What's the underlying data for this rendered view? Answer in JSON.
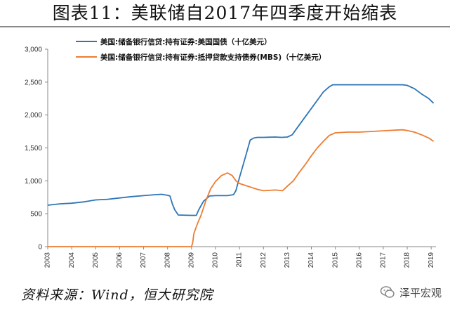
{
  "title": "图表11：美联储自2017年四季度开始缩表",
  "source": "资料来源：Wind，恒大研究院",
  "watermark": "泽平宏观",
  "chart_data": {
    "type": "line",
    "xlim": [
      2003,
      2019.2
    ],
    "ylim": [
      0,
      3000
    ],
    "xticks": [
      "2003",
      "2004",
      "2005",
      "2006",
      "2007",
      "2008",
      "2009",
      "2010",
      "2011",
      "2012",
      "2013",
      "2014",
      "2015",
      "2016",
      "2017",
      "2018",
      "2019"
    ],
    "yticks": [
      "0",
      "500",
      "1,000",
      "1,500",
      "2,000",
      "2,500",
      "3,000"
    ],
    "legend_position": "top",
    "grid": false,
    "series": [
      {
        "name": "美国:储备银行信贷:持有证券:美国国债（十亿美元）",
        "color": "#2E75B6",
        "points": [
          [
            2003.0,
            630
          ],
          [
            2003.5,
            650
          ],
          [
            2004.0,
            660
          ],
          [
            2004.5,
            680
          ],
          [
            2005.0,
            710
          ],
          [
            2005.5,
            720
          ],
          [
            2006.0,
            740
          ],
          [
            2006.5,
            760
          ],
          [
            2007.0,
            775
          ],
          [
            2007.5,
            790
          ],
          [
            2007.75,
            795
          ],
          [
            2008.0,
            780
          ],
          [
            2008.1,
            770
          ],
          [
            2008.2,
            650
          ],
          [
            2008.3,
            560
          ],
          [
            2008.45,
            480
          ],
          [
            2009.0,
            475
          ],
          [
            2009.2,
            475
          ],
          [
            2009.3,
            560
          ],
          [
            2009.5,
            690
          ],
          [
            2009.75,
            770
          ],
          [
            2010.0,
            775
          ],
          [
            2010.5,
            775
          ],
          [
            2010.75,
            790
          ],
          [
            2010.85,
            850
          ],
          [
            2011.0,
            1050
          ],
          [
            2011.2,
            1300
          ],
          [
            2011.45,
            1620
          ],
          [
            2011.6,
            1650
          ],
          [
            2011.75,
            1660
          ],
          [
            2012.0,
            1660
          ],
          [
            2012.5,
            1665
          ],
          [
            2012.75,
            1660
          ],
          [
            2013.0,
            1665
          ],
          [
            2013.2,
            1700
          ],
          [
            2013.5,
            1850
          ],
          [
            2014.0,
            2100
          ],
          [
            2014.5,
            2350
          ],
          [
            2014.75,
            2430
          ],
          [
            2014.9,
            2460
          ],
          [
            2015.5,
            2460
          ],
          [
            2016.0,
            2460
          ],
          [
            2016.5,
            2460
          ],
          [
            2017.0,
            2460
          ],
          [
            2017.5,
            2460
          ],
          [
            2017.8,
            2460
          ],
          [
            2018.0,
            2450
          ],
          [
            2018.3,
            2400
          ],
          [
            2018.6,
            2320
          ],
          [
            2018.9,
            2250
          ],
          [
            2019.1,
            2180
          ]
        ]
      },
      {
        "name": "美国:储备银行信贷:持有证券:抵押贷款支持债券(MBS)（十亿美元）",
        "color": "#ED7D31",
        "points": [
          [
            2003.0,
            0
          ],
          [
            2009.0,
            0
          ],
          [
            2009.05,
            60
          ],
          [
            2009.1,
            200
          ],
          [
            2009.25,
            350
          ],
          [
            2009.4,
            480
          ],
          [
            2009.6,
            700
          ],
          [
            2009.8,
            880
          ],
          [
            2010.0,
            990
          ],
          [
            2010.25,
            1080
          ],
          [
            2010.5,
            1120
          ],
          [
            2010.7,
            1080
          ],
          [
            2010.85,
            1000
          ],
          [
            2011.0,
            960
          ],
          [
            2011.25,
            930
          ],
          [
            2011.5,
            900
          ],
          [
            2011.75,
            870
          ],
          [
            2012.0,
            850
          ],
          [
            2012.25,
            855
          ],
          [
            2012.5,
            860
          ],
          [
            2012.8,
            850
          ],
          [
            2013.0,
            920
          ],
          [
            2013.25,
            1000
          ],
          [
            2013.5,
            1130
          ],
          [
            2013.75,
            1250
          ],
          [
            2014.0,
            1380
          ],
          [
            2014.25,
            1500
          ],
          [
            2014.5,
            1600
          ],
          [
            2014.75,
            1690
          ],
          [
            2015.0,
            1730
          ],
          [
            2015.5,
            1740
          ],
          [
            2016.0,
            1740
          ],
          [
            2016.5,
            1750
          ],
          [
            2017.0,
            1760
          ],
          [
            2017.5,
            1770
          ],
          [
            2017.8,
            1775
          ],
          [
            2018.0,
            1765
          ],
          [
            2018.3,
            1740
          ],
          [
            2018.6,
            1700
          ],
          [
            2018.9,
            1650
          ],
          [
            2019.1,
            1600
          ]
        ]
      }
    ]
  }
}
